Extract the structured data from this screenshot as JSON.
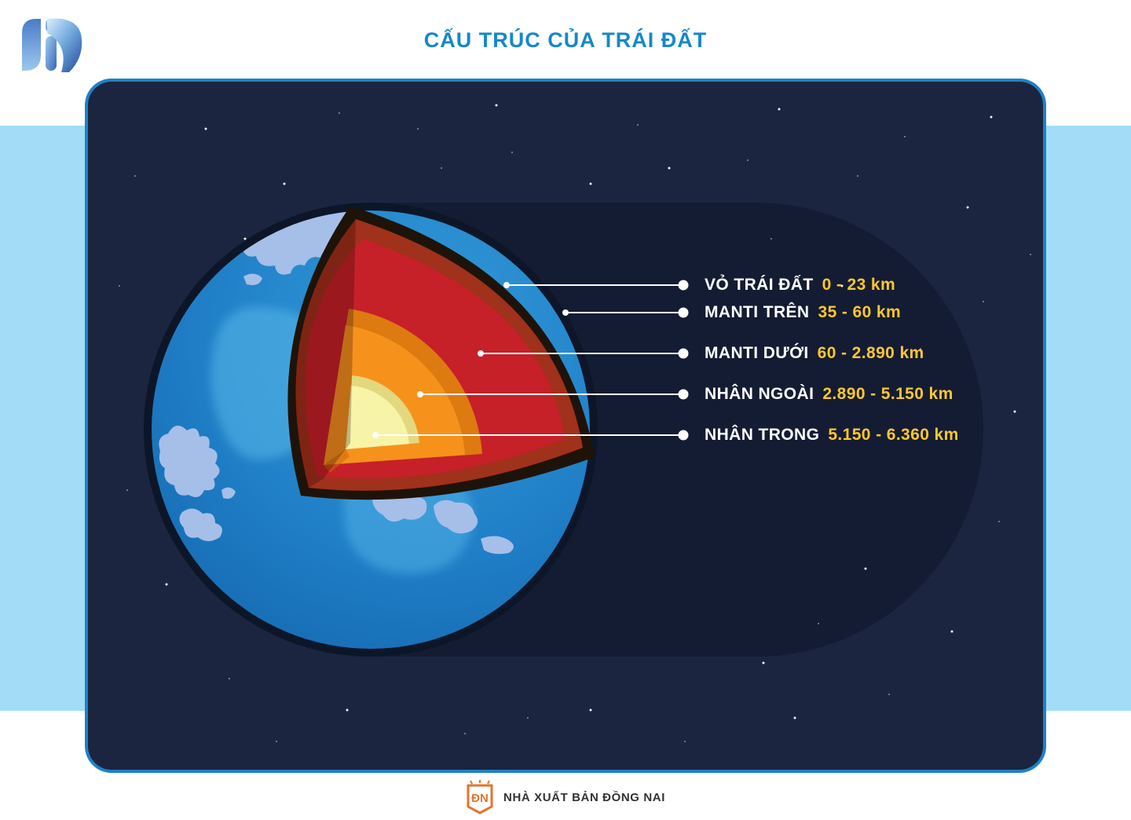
{
  "title": "CẤU TRÚC CỦA TRÁI ĐẤT",
  "legend": {
    "items": [
      {
        "label": "VỎ TRÁI ĐẤT",
        "range": "0 - 23 km"
      },
      {
        "label": "MANTI TRÊN",
        "range": "35 - 60 km"
      },
      {
        "label": "MANTI DƯỚI",
        "range": "60 - 2.890 km"
      },
      {
        "label": "NHÂN NGOÀI",
        "range": "2.890 - 5.150 km"
      },
      {
        "label": "NHÂN TRONG",
        "range": "5.150 - 6.360 km"
      }
    ]
  },
  "footer": {
    "publisher": "NHÀ XUẤT BẢN ĐỒNG NAI",
    "logo_monogram": "ĐN"
  },
  "colors": {
    "title_blue": "#1688c9",
    "value_yellow": "#ffc72e",
    "label_white": "#ffffff",
    "panel_navy": "#1b2540",
    "capsule_navy": "#141c33",
    "side_band_blue": "#a3dcf7",
    "panel_border_blue": "#1e81c8",
    "ocean_blue": "#1f7ec6",
    "continent_blue": "#a6bfe9",
    "crust_dark": "#1e1309",
    "upper_mantle_maroon": "#a0311b",
    "lower_mantle_red": "#c62029",
    "outer_core_orange": "#f6921c",
    "inner_core_yellow": "#f7f4a8",
    "publisher_orange": "#e0762f"
  }
}
